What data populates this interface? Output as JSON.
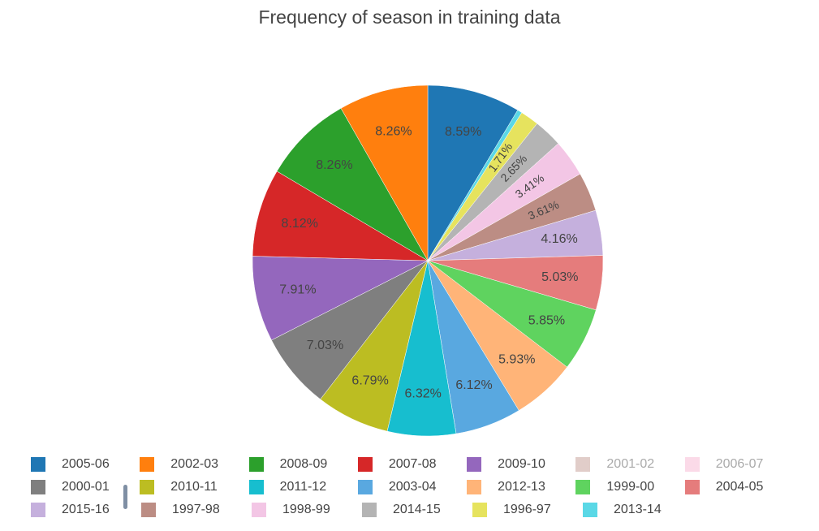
{
  "chart_data": {
    "type": "pie",
    "title": "Frequency of season in training data",
    "direction": "clockwise",
    "start_angle_deg": 0,
    "slices": [
      {
        "label": "2005-06",
        "value": 8.59,
        "text": "8.59%",
        "color": "#1f77b4"
      },
      {
        "label": "2013-14",
        "value": 0.44,
        "text": "",
        "color": "#5ad8e6"
      },
      {
        "label": "1996-97",
        "value": 1.71,
        "text": "1.71%",
        "color": "#e6e35e"
      },
      {
        "label": "2014-15",
        "value": 2.65,
        "text": "2.65%",
        "color": "#b4b4b4"
      },
      {
        "label": "1998-99",
        "value": 3.41,
        "text": "3.41%",
        "color": "#f3c6e5"
      },
      {
        "label": "1997-98",
        "value": 3.61,
        "text": "3.61%",
        "color": "#bc8d84"
      },
      {
        "label": "2015-16",
        "value": 4.16,
        "text": "4.16%",
        "color": "#c5b0dd"
      },
      {
        "label": "2004-05",
        "value": 5.03,
        "text": "5.03%",
        "color": "#e57c7c"
      },
      {
        "label": "1999-00",
        "value": 5.85,
        "text": "5.85%",
        "color": "#5fd35f"
      },
      {
        "label": "2012-13",
        "value": 5.93,
        "text": "5.93%",
        "color": "#ffb478"
      },
      {
        "label": "2003-04",
        "value": 6.12,
        "text": "6.12%",
        "color": "#59a8e0"
      },
      {
        "label": "2011-12",
        "value": 6.32,
        "text": "6.32%",
        "color": "#17becf"
      },
      {
        "label": "2010-11",
        "value": 6.79,
        "text": "6.79%",
        "color": "#bcbd22"
      },
      {
        "label": "2000-01",
        "value": 7.03,
        "text": "7.03%",
        "color": "#7f7f7f"
      },
      {
        "label": "2009-10",
        "value": 7.91,
        "text": "7.91%",
        "color": "#9467bd"
      },
      {
        "label": "2007-08",
        "value": 8.12,
        "text": "8.12%",
        "color": "#d62728"
      },
      {
        "label": "2008-09",
        "value": 8.26,
        "text": "8.26%",
        "color": "#2ca02c"
      },
      {
        "label": "2002-03",
        "value": 8.26,
        "text": "8.26%",
        "color": "#ff7f0e"
      }
    ],
    "legend_placement": "bottom",
    "legend": [
      {
        "label": "2005-06",
        "color": "#1f77b4",
        "hidden": false
      },
      {
        "label": "2002-03",
        "color": "#ff7f0e",
        "hidden": false
      },
      {
        "label": "2008-09",
        "color": "#2ca02c",
        "hidden": false
      },
      {
        "label": "2007-08",
        "color": "#d62728",
        "hidden": false
      },
      {
        "label": "2009-10",
        "color": "#9467bd",
        "hidden": false
      },
      {
        "label": "2001-02",
        "color": "#c49c94",
        "hidden": true
      },
      {
        "label": "2006-07",
        "color": "#f7b6d2",
        "hidden": true
      },
      {
        "label": "2000-01",
        "color": "#7f7f7f",
        "hidden": false
      },
      {
        "label": "2010-11",
        "color": "#bcbd22",
        "hidden": false
      },
      {
        "label": "2011-12",
        "color": "#17becf",
        "hidden": false
      },
      {
        "label": "2003-04",
        "color": "#59a8e0",
        "hidden": false
      },
      {
        "label": "2012-13",
        "color": "#ffb478",
        "hidden": false
      },
      {
        "label": "1999-00",
        "color": "#5fd35f",
        "hidden": false
      },
      {
        "label": "2004-05",
        "color": "#e57c7c",
        "hidden": false
      },
      {
        "label": "2015-16",
        "color": "#c5b0dd",
        "hidden": false
      },
      {
        "label": "1997-98",
        "color": "#bc8d84",
        "hidden": false
      },
      {
        "label": "1998-99",
        "color": "#f3c6e5",
        "hidden": false
      },
      {
        "label": "2014-15",
        "color": "#b4b4b4",
        "hidden": false
      },
      {
        "label": "1996-97",
        "color": "#e6e35e",
        "hidden": false
      },
      {
        "label": "2013-14",
        "color": "#5ad8e6",
        "hidden": false
      }
    ]
  }
}
